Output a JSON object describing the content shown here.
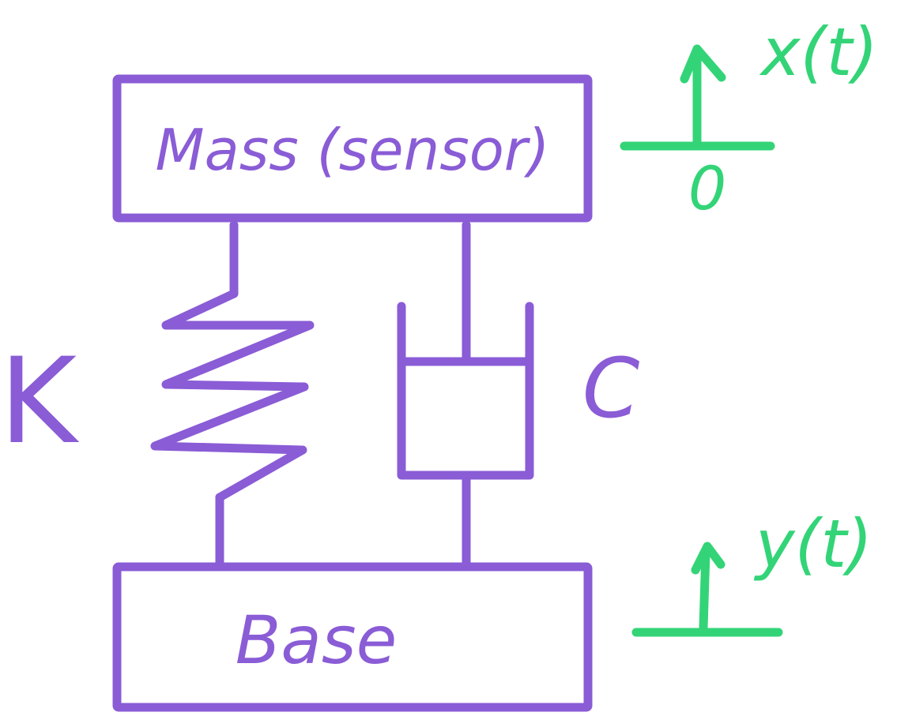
{
  "colors": {
    "purple": "#8a5cd6",
    "green": "#33d477",
    "background": "#ffffff"
  },
  "labels": {
    "mass": "Mass (sensor)",
    "base": "Base",
    "spring": "K",
    "damper": "C",
    "mass_displacement": "x(t)",
    "mass_reference": "0",
    "base_displacement": "y(t)"
  }
}
